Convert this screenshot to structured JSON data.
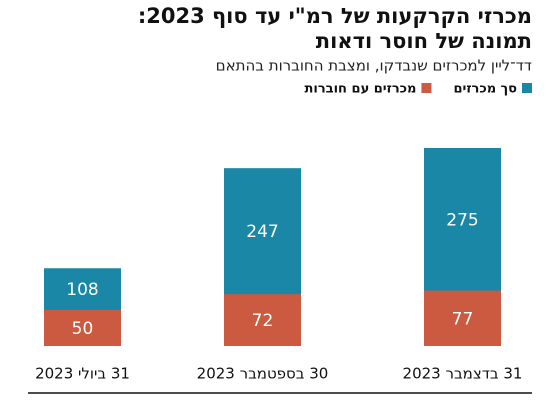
{
  "chart_data": {
    "type": "overlay_bar",
    "title_lines": [
      "מכרזי הקרקעות של רמ\"י עד סוף 2023:",
      "תמונה של חוסר ודאות"
    ],
    "subtitle": "דד־ליין למכרזים שנבדקו, ומצבת החוברות בהתאם",
    "categories": [
      "31 ביולי 2023",
      "30 בספטמבר 2023",
      "31 בדצמבר 2023"
    ],
    "series": [
      {
        "name": "סך מכרזים",
        "color": "#1b87a6",
        "values": [
          108,
          247,
          275
        ]
      },
      {
        "name": "מכרזים עם חוברות",
        "color": "#cc5a40",
        "values": [
          50,
          72,
          77
        ]
      }
    ],
    "ylim": [
      0,
      300
    ]
  }
}
